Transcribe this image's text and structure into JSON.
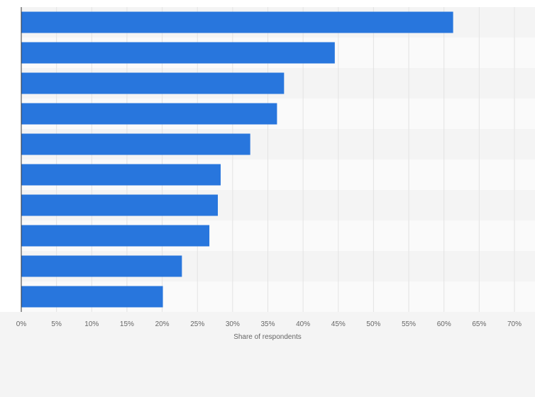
{
  "chart_data": {
    "type": "bar",
    "orientation": "horizontal",
    "title": "",
    "xlabel": "Share of respondents",
    "ylabel": "",
    "categories": [
      "",
      "",
      "",
      "",
      "",
      "",
      "",
      "",
      "",
      ""
    ],
    "values": [
      61.3,
      44.5,
      37.3,
      36.3,
      32.5,
      28.3,
      27.9,
      26.7,
      22.8,
      20.1
    ],
    "xlim": [
      0,
      70
    ],
    "xticks": [
      0,
      5,
      10,
      15,
      20,
      25,
      30,
      35,
      40,
      45,
      50,
      55,
      60,
      65,
      70
    ],
    "tick_labels": [
      "0%",
      "5%",
      "10%",
      "15%",
      "20%",
      "25%",
      "30%",
      "35%",
      "40%",
      "45%",
      "50%",
      "55%",
      "60%",
      "65%",
      "70%"
    ],
    "grid": true,
    "bar_color": "#2876dd",
    "stripe_colors": [
      "#f4f4f4",
      "#fafafa"
    ],
    "background_color": "#ffffff"
  }
}
